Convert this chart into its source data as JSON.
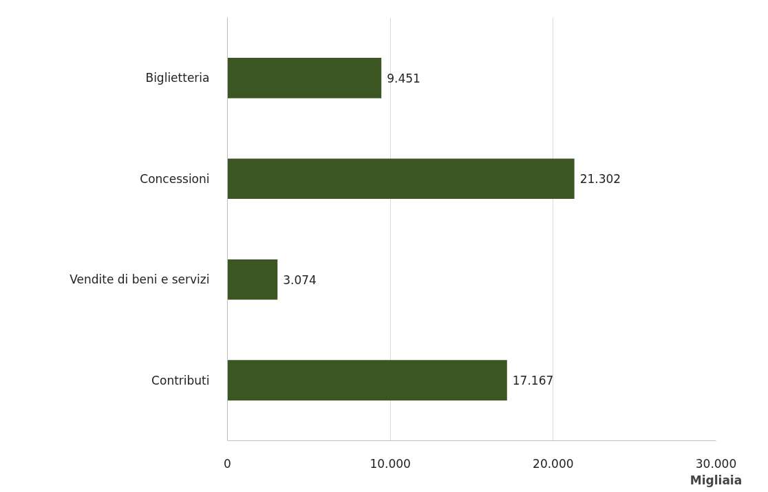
{
  "chart_data": {
    "type": "bar",
    "orientation": "horizontal",
    "xlabel": "Migliaia",
    "categories": [
      "Biglietteria",
      "Concessioni",
      "Vendite di beni e servizi",
      "Contributi"
    ],
    "values": [
      9451,
      21302,
      3074,
      17167
    ],
    "value_labels": [
      "9.451",
      "21.302",
      "3.074",
      "17.167"
    ],
    "color": "#3b5623",
    "xlim": [
      0,
      30000
    ],
    "xticks": [
      0,
      {
        "value": 10000,
        "label": "10.000"
      },
      {
        "value": 20000,
        "label": "20.000"
      },
      {
        "value": 30000,
        "label": "30.000"
      }
    ],
    "grid": "x"
  }
}
